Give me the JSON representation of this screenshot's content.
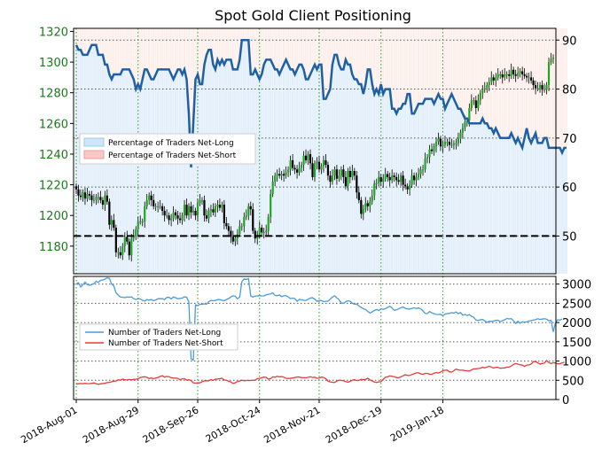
{
  "chart_data": [
    {
      "type": "candlestick+line",
      "title": "Spot Gold Client Positioning",
      "y_left": {
        "ticks": [
          1180,
          1200,
          1220,
          1240,
          1260,
          1280,
          1300,
          1320
        ],
        "range": [
          1162,
          1322
        ]
      },
      "y_right": {
        "ticks": [
          50,
          60,
          70,
          80,
          90
        ],
        "range": [
          42.3,
          92.4
        ]
      },
      "x_ticks": [
        "2018-Aug-01",
        "2018-Aug-29",
        "2018-Sep-26",
        "2018-Oct-24",
        "2018-Nov-21",
        "2018-Dec-19",
        "2019-Jan-18"
      ],
      "legend": [
        "Percentage of Traders Net-Long",
        "Percentage of Traders Net-Short"
      ],
      "reference_line": 50,
      "price_close": [
        1217,
        1213,
        1212,
        1215,
        1211,
        1214,
        1213,
        1210,
        1210,
        1212,
        1212,
        1210,
        1207,
        1213,
        1209,
        1194,
        1197,
        1192,
        1176,
        1176,
        1174,
        1180,
        1186,
        1183,
        1174,
        1185,
        1187,
        1191,
        1196,
        1196,
        1196,
        1206,
        1210,
        1213,
        1210,
        1206,
        1206,
        1206,
        1206,
        1203,
        1200,
        1200,
        1197,
        1198,
        1202,
        1200,
        1198,
        1197,
        1200,
        1207,
        1200,
        1206,
        1202,
        1203,
        1200,
        1208,
        1210,
        1210,
        1200,
        1198,
        1203,
        1204,
        1202,
        1206,
        1207,
        1205,
        1207,
        1195,
        1193,
        1190,
        1186,
        1183,
        1185,
        1188,
        1193,
        1193,
        1199,
        1200,
        1206,
        1204,
        1190,
        1185,
        1187,
        1192,
        1189,
        1189,
        1190,
        1199,
        1214,
        1222,
        1226,
        1227,
        1226,
        1227,
        1226,
        1228,
        1230,
        1236,
        1231,
        1230,
        1228,
        1231,
        1233,
        1239,
        1236,
        1240,
        1234,
        1225,
        1234,
        1235,
        1230,
        1232,
        1236,
        1233,
        1226,
        1222,
        1226,
        1230,
        1224,
        1226,
        1230,
        1225,
        1219,
        1229,
        1225,
        1229,
        1226,
        1215,
        1210,
        1201,
        1204,
        1208,
        1206,
        1209,
        1213,
        1221,
        1221,
        1225,
        1222,
        1224,
        1227,
        1225,
        1223,
        1226,
        1225,
        1223,
        1222,
        1226,
        1220,
        1219,
        1217,
        1220,
        1226,
        1223,
        1225,
        1227,
        1230,
        1230,
        1237,
        1238,
        1243,
        1242,
        1245,
        1248,
        1250,
        1245,
        1246,
        1248,
        1248,
        1246,
        1246,
        1247,
        1247,
        1250,
        1254,
        1257,
        1261,
        1262,
        1270,
        1275,
        1275,
        1270,
        1275,
        1280,
        1282,
        1283,
        1285,
        1287,
        1290,
        1288,
        1290,
        1292,
        1292,
        1290,
        1292,
        1292,
        1291,
        1295,
        1292,
        1291,
        1293,
        1294,
        1292,
        1291,
        1290,
        1290,
        1288,
        1285,
        1283,
        1283,
        1285,
        1282,
        1282,
        1285,
        1300,
        1302,
        1303
      ],
      "pct_net_long": [
        89,
        88,
        88,
        87,
        87,
        87,
        88,
        89,
        89,
        89,
        87,
        87,
        87,
        85,
        85,
        83,
        82,
        83,
        83,
        83,
        83,
        84,
        84,
        84,
        84,
        83,
        82,
        80,
        81,
        80,
        82,
        84,
        84,
        83,
        82,
        82,
        83,
        84,
        84,
        84,
        84,
        84,
        84,
        83,
        82,
        83,
        84,
        84,
        83,
        84,
        82,
        75,
        64,
        73,
        82,
        83,
        81,
        81,
        85,
        87,
        88,
        88,
        85,
        84,
        86,
        85,
        86,
        85,
        86,
        86,
        86,
        84,
        84,
        84,
        86,
        90,
        90,
        90,
        90,
        83,
        83,
        84,
        83,
        82,
        83,
        85,
        86,
        86,
        86,
        85,
        84,
        84,
        83,
        84,
        85,
        86,
        85,
        84,
        84,
        83,
        84,
        85,
        85,
        84,
        82,
        82,
        83,
        84,
        85,
        84,
        85,
        85,
        78,
        78,
        79,
        80,
        85,
        87,
        87,
        85,
        84,
        84,
        86,
        85,
        85,
        83,
        82,
        82,
        81,
        81,
        79,
        81,
        84,
        84,
        81,
        79,
        80,
        79,
        81,
        79,
        80,
        80,
        80,
        76,
        76,
        75,
        76,
        76,
        77,
        77,
        79,
        79,
        75,
        75,
        76,
        77,
        77,
        77,
        78,
        78,
        78,
        78,
        77,
        78,
        79,
        78,
        78,
        76,
        77,
        78,
        79,
        78,
        77,
        76,
        76,
        75,
        74,
        74,
        73,
        73,
        73,
        73,
        73,
        73,
        74,
        73,
        73,
        72,
        72,
        71,
        72,
        71,
        70,
        70,
        70,
        70,
        70,
        71,
        70,
        69,
        70,
        69,
        68,
        70,
        72,
        70,
        69,
        70,
        71,
        69,
        69,
        69,
        70,
        70,
        68,
        68,
        68,
        68,
        68,
        68,
        67,
        68,
        68
      ]
    },
    {
      "type": "line",
      "y_ticks": [
        0,
        500,
        1000,
        1500,
        2000,
        2500,
        3000
      ],
      "y_range": [
        0,
        3200
      ],
      "legend": [
        "Number of Traders Net-Long",
        "Number of Traders Net-Short"
      ],
      "series": [
        {
          "name": "Number of Traders Net-Long",
          "color": "#4a9bd9",
          "values": [
            3009,
            3035,
            2924,
            2983,
            3050,
            2986,
            2971,
            2985,
            3010,
            3072,
            3044,
            3096,
            3105,
            3130,
            3163,
            3146,
            3000,
            2958,
            2777,
            2715,
            2664,
            2656,
            2648,
            2665,
            2660,
            2668,
            2619,
            2599,
            2618,
            2614,
            2578,
            2557,
            2597,
            2580,
            2599,
            2567,
            2591,
            2621,
            2621,
            2623,
            2597,
            2653,
            2657,
            2616,
            2666,
            2646,
            2617,
            2629,
            2636,
            2669,
            2658,
            2539,
            1057,
            1024,
            2460,
            2440,
            2476,
            2473,
            2486,
            2480,
            2542,
            2576,
            2567,
            2573,
            2600,
            2597,
            2580,
            2568,
            2599,
            2624,
            2666,
            2697,
            2685,
            2621,
            2660,
            3062,
            3135,
            3122,
            3140,
            2691,
            2661,
            2688,
            2691,
            2701,
            2693,
            2691,
            2722,
            2735,
            2746,
            2775,
            2705,
            2697,
            2718,
            2672,
            2696,
            2699,
            2665,
            2622,
            2636,
            2622,
            2552,
            2603,
            2590,
            2578,
            2573,
            2607,
            2639,
            2645,
            2609,
            2552,
            2573,
            2574,
            2543,
            2552,
            2556,
            2611,
            2662,
            2695,
            2641,
            2594,
            2507,
            2500,
            2542,
            2566,
            2555,
            2504,
            2475,
            2484,
            2430,
            2396,
            2360,
            2341,
            2290,
            2249,
            2280,
            2314,
            2338,
            2313,
            2356,
            2343,
            2363,
            2397,
            2427,
            2377,
            2319,
            2333,
            2355,
            2384,
            2406,
            2369,
            2354,
            2352,
            2368,
            2385,
            2364,
            2381,
            2359,
            2304,
            2238,
            2234,
            2285,
            2254,
            2230,
            2213,
            2211,
            2216,
            2177,
            2219,
            2232,
            2240,
            2259,
            2246,
            2276,
            2230,
            2261,
            2192,
            2212,
            2185,
            2208,
            2164,
            2137,
            2067,
            2053,
            2071,
            2082,
            2044,
            2004,
            2038,
            2031,
            2039,
            2055,
            2060,
            2022,
            2053,
            2073,
            2106,
            2096,
            2101,
            2044,
            1975,
            2034,
            1985,
            2020,
            2011,
            2020,
            2039,
            2052,
            2065,
            2079,
            2100,
            2080,
            2090,
            2100,
            2088,
            2048,
            2060,
            1758,
            1990,
            2075,
            2065,
            2090
          ]
        },
        {
          "name": "Number of Traders Net-Short",
          "color": "#e83a3a",
          "values": [
            400,
            410,
            417,
            411,
            422,
            411,
            414,
            418,
            433,
            408,
            397,
            408,
            416,
            422,
            443,
            446,
            460,
            479,
            482,
            512,
            504,
            529,
            513,
            509,
            522,
            510,
            525,
            528,
            536,
            573,
            583,
            591,
            577,
            543,
            565,
            536,
            561,
            574,
            601,
            619,
            581,
            602,
            595,
            566,
            555,
            556,
            550,
            513,
            539,
            543,
            502,
            515,
            493,
            436,
            425,
            436,
            432,
            465,
            484,
            490,
            486,
            515,
            497,
            529,
            535,
            541,
            554,
            509,
            499,
            475,
            456,
            417,
            434,
            467,
            480,
            501,
            488,
            495,
            497,
            496,
            500,
            507,
            541,
            550,
            565,
            585,
            577,
            531,
            540,
            592,
            580,
            603,
            589,
            598,
            579,
            553,
            548,
            548,
            560,
            568,
            586,
            582,
            572,
            566,
            567,
            575,
            592,
            573,
            582,
            551,
            562,
            583,
            574,
            542,
            480,
            459,
            448,
            442,
            482,
            501,
            498,
            491,
            464,
            450,
            473,
            503,
            518,
            495,
            496,
            526,
            517,
            523,
            552,
            511,
            481,
            454,
            442,
            461,
            462,
            524,
            577,
            591,
            615,
            603,
            592,
            572,
            567,
            590,
            618,
            644,
            628,
            623,
            651,
            669,
            693,
            696,
            665,
            656,
            678,
            679,
            661,
            654,
            686,
            701,
            688,
            716,
            749,
            761,
            764,
            720,
            713,
            748,
            791,
            772,
            761,
            764,
            751,
            749,
            741,
            771,
            796,
            799,
            805,
            815,
            838,
            823,
            844,
            865,
            845,
            816,
            835,
            839,
            811,
            820,
            823,
            843,
            843,
            873,
            913,
            938,
            918,
            904,
            895,
            862,
            895,
            899,
            920,
            982,
            988,
            953,
            921,
            937,
            946,
            1013,
            963,
            936,
            955,
            951,
            928,
            930,
            950,
            970
          ]
        }
      ]
    }
  ]
}
